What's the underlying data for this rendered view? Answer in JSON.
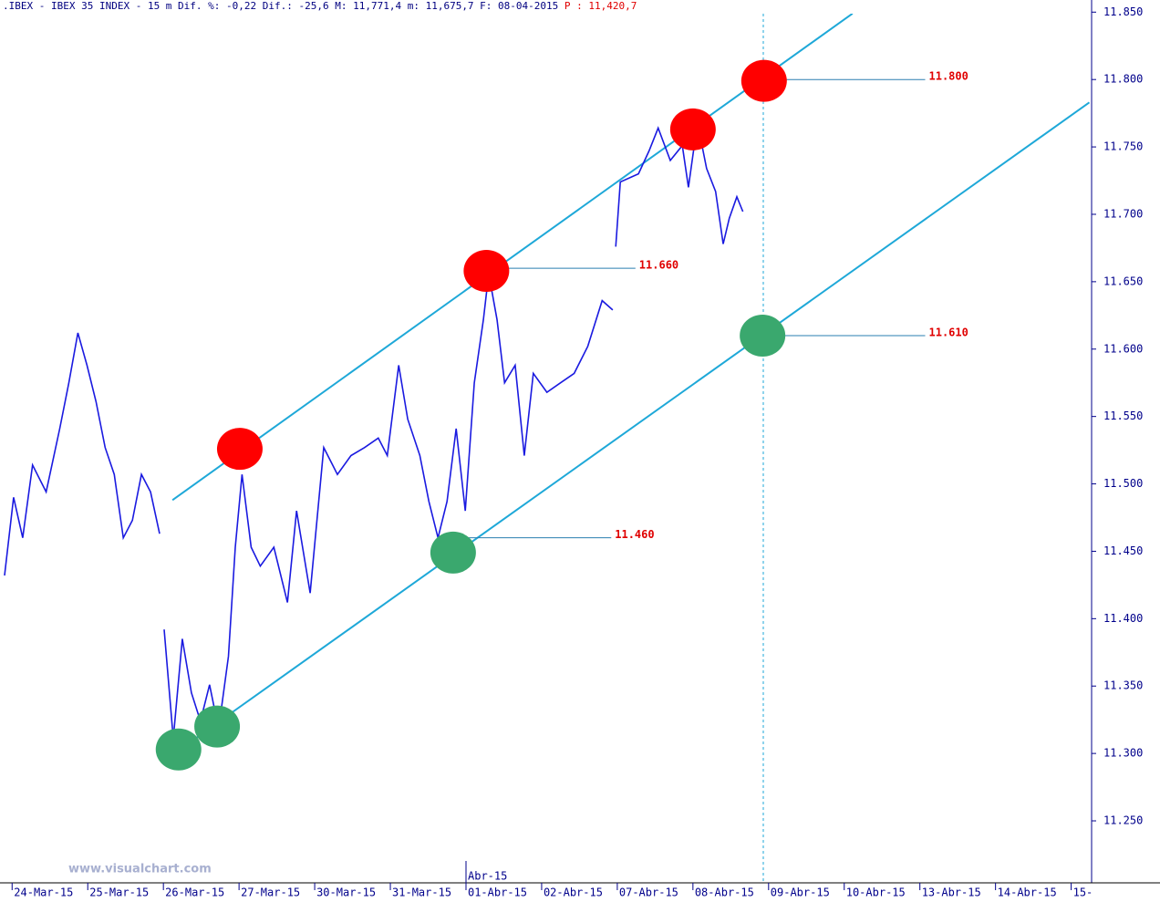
{
  "chart_data": {
    "type": "line",
    "title": ".IBEX - IBEX 35 INDEX -  15 m Dif. %: -0,22 Dif.: -25,6 M: 11,771,4 m: 11,675,7 F: 08-04-2015",
    "price_label": "P : 11,420,7",
    "watermark": "www.visualchart.com",
    "month_label": "Abr-15",
    "categories": [
      "24-Mar-15",
      "25-Mar-15",
      "26-Mar-15",
      "27-Mar-15",
      "30-Mar-15",
      "31-Mar-15",
      "01-Abr-15",
      "02-Abr-15",
      "07-Abr-15",
      "08-Abr-15",
      "09-Abr-15",
      "10-Abr-15",
      "13-Abr-15",
      "14-Abr-15",
      "15-"
    ],
    "xlim": [
      -0.16,
      14.27
    ],
    "ylim": [
      11204,
      11859
    ],
    "yticks": [
      {
        "value": 11250,
        "label": "11.250"
      },
      {
        "value": 11300,
        "label": "11.300"
      },
      {
        "value": 11350,
        "label": "11.350"
      },
      {
        "value": 11400,
        "label": "11.400"
      },
      {
        "value": 11450,
        "label": "11.450"
      },
      {
        "value": 11500,
        "label": "11.500"
      },
      {
        "value": 11550,
        "label": "11.550"
      },
      {
        "value": 11600,
        "label": "11.600"
      },
      {
        "value": 11650,
        "label": "11.650"
      },
      {
        "value": 11700,
        "label": "11.700"
      },
      {
        "value": 11750,
        "label": "11.750"
      },
      {
        "value": 11800,
        "label": "11.800"
      },
      {
        "value": 11850,
        "label": "11.850"
      }
    ],
    "series": [
      {
        "name": "IBEX 35",
        "color": "#1a1ae0",
        "x": [
          -0.1,
          0.02,
          0.14,
          0.27,
          0.45,
          0.63,
          0.75,
          0.87,
          0.99,
          1.11,
          1.23,
          1.35,
          1.47,
          1.59,
          1.71,
          1.83,
          1.95,
          1.98,
          2.01,
          2.13,
          2.25,
          2.37,
          2.49,
          2.61,
          2.73,
          2.86,
          2.95,
          3.04,
          3.16,
          3.28,
          3.46,
          3.64,
          3.76,
          3.94,
          4.12,
          4.3,
          4.48,
          4.66,
          4.84,
          4.96,
          5.11,
          5.23,
          5.39,
          5.51,
          5.63,
          5.75,
          5.87,
          5.99,
          6.11,
          6.23,
          6.3,
          6.41,
          6.51,
          6.65,
          6.77,
          6.89,
          7.07,
          7.25,
          7.43,
          7.61,
          7.8,
          7.94,
          7.96,
          7.98,
          8.04,
          8.28,
          8.42,
          8.54,
          8.7,
          8.86,
          8.94,
          9.06,
          9.18,
          9.3,
          9.4,
          9.48,
          9.58,
          9.66
        ],
        "values": [
          11432,
          11490,
          11460,
          11514,
          11494,
          11541,
          11575,
          11612,
          11588,
          11561,
          11527,
          11507,
          11460,
          11473,
          11507,
          11494,
          11463,
          null,
          11392,
          11311,
          11385,
          11345,
          11324,
          11351,
          11318,
          11372,
          11453,
          11507,
          11453,
          11439,
          11453,
          11412,
          11480,
          11419,
          11527,
          11507,
          11521,
          11527,
          11534,
          11521,
          11588,
          11548,
          11521,
          11487,
          11460,
          11487,
          11541,
          11480,
          11575,
          11622,
          11656,
          11622,
          11575,
          11588,
          11521,
          11582,
          11568,
          11575,
          11582,
          11602,
          11636,
          11629,
          null,
          11676,
          11724,
          11730,
          11747,
          11764,
          11740,
          11751,
          11720,
          11768,
          11734,
          11717,
          11678,
          11697,
          11713,
          11702
        ]
      }
    ],
    "channel_lines": [
      {
        "x": [
          2.12,
          11.11
        ],
        "values": [
          11488,
          11849
        ],
        "color": "#1ea8d8"
      },
      {
        "x": [
          2.12,
          14.24
        ],
        "values": [
          11299,
          11783
        ],
        "color": "#1ea8d8"
      }
    ],
    "resistance_points": {
      "color": "#ff0000",
      "x": [
        3.01,
        6.27,
        9.0,
        9.94
      ],
      "values": [
        11526,
        11658,
        11763,
        11799
      ]
    },
    "support_points": {
      "color": "#3aa86e",
      "x": [
        2.2,
        2.71,
        5.83,
        9.92
      ],
      "values": [
        11303,
        11320,
        11449,
        11610
      ]
    },
    "levels": [
      {
        "value": 11800,
        "label": "11.800",
        "x": [
          9.94,
          12.07
        ]
      },
      {
        "value": 11660,
        "label": "11.660",
        "x": [
          6.27,
          8.24
        ]
      },
      {
        "value": 11610,
        "label": "11.610",
        "x": [
          9.92,
          12.07
        ]
      },
      {
        "value": 11460,
        "label": "11.460",
        "x": [
          5.83,
          7.92
        ]
      }
    ],
    "vline_x": 9.93
  }
}
